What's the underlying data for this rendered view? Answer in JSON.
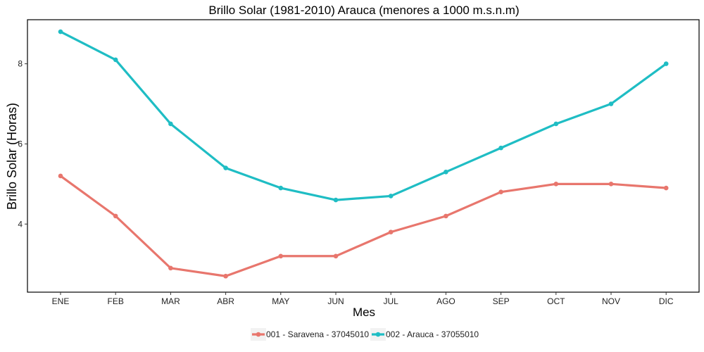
{
  "chart_data": {
    "type": "line",
    "title": "Brillo Solar (1981-2010) Arauca (menores a 1000 m.s.n.m)",
    "xlabel": "Mes",
    "ylabel": "Brillo Solar (Horas)",
    "categories": [
      "ENE",
      "FEB",
      "MAR",
      "ABR",
      "MAY",
      "JUN",
      "JUL",
      "AGO",
      "SEP",
      "OCT",
      "NOV",
      "DIC"
    ],
    "yticks": [
      4,
      6,
      8
    ],
    "ylim": [
      2.3,
      9.1
    ],
    "grid": false,
    "legend_position": "bottom",
    "series": [
      {
        "name": "001 - Saravena - 37045010",
        "color": "#E8766D",
        "values": [
          5.2,
          4.2,
          2.9,
          2.7,
          3.2,
          3.2,
          3.8,
          4.2,
          4.8,
          5.0,
          5.0,
          4.9
        ]
      },
      {
        "name": "002 - Arauca - 37055010",
        "color": "#1FBDC4",
        "values": [
          8.8,
          8.1,
          6.5,
          5.4,
          4.9,
          4.6,
          4.7,
          5.3,
          5.9,
          6.5,
          7.0,
          8.0
        ]
      }
    ]
  }
}
